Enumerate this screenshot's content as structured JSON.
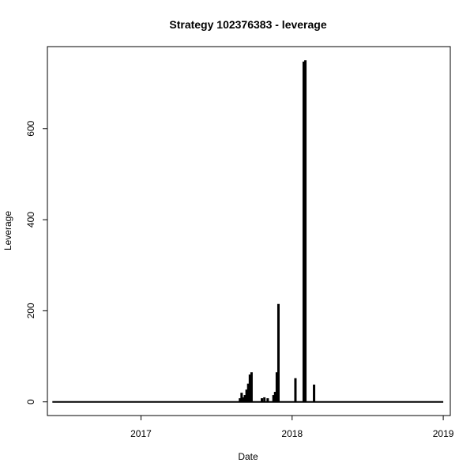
{
  "chart_data": {
    "type": "bar",
    "title": "Strategy 102376383 - leverage",
    "xlabel": "Date",
    "ylabel": "Leverage",
    "xlim": [
      "2016-05-20",
      "2019-01-18"
    ],
    "ylim": [
      -30,
      780
    ],
    "x_ticks": [
      {
        "date": "2017-01-01",
        "label": "2017"
      },
      {
        "date": "2018-01-01",
        "label": "2018"
      },
      {
        "date": "2019-01-01",
        "label": "2019"
      }
    ],
    "y_ticks": [
      0,
      200,
      400,
      600
    ],
    "baseline": {
      "start": "2016-06-01",
      "end": "2019-01-01",
      "value": 0
    },
    "bars": [
      {
        "date": "2017-08-28",
        "value": 8
      },
      {
        "date": "2017-09-01",
        "value": 20
      },
      {
        "date": "2017-09-05",
        "value": 10
      },
      {
        "date": "2017-09-09",
        "value": 15
      },
      {
        "date": "2017-09-13",
        "value": 27
      },
      {
        "date": "2017-09-17",
        "value": 40
      },
      {
        "date": "2017-09-21",
        "value": 60
      },
      {
        "date": "2017-09-25",
        "value": 65
      },
      {
        "date": "2017-10-20",
        "value": 8
      },
      {
        "date": "2017-10-26",
        "value": 10
      },
      {
        "date": "2017-11-03",
        "value": 8
      },
      {
        "date": "2017-11-17",
        "value": 15
      },
      {
        "date": "2017-11-21",
        "value": 22
      },
      {
        "date": "2017-11-25",
        "value": 65
      },
      {
        "date": "2017-11-29",
        "value": 215
      },
      {
        "date": "2018-01-09",
        "value": 52
      },
      {
        "date": "2018-01-29",
        "value": 747
      },
      {
        "date": "2018-02-02",
        "value": 750
      },
      {
        "date": "2018-02-23",
        "value": 38
      }
    ]
  }
}
